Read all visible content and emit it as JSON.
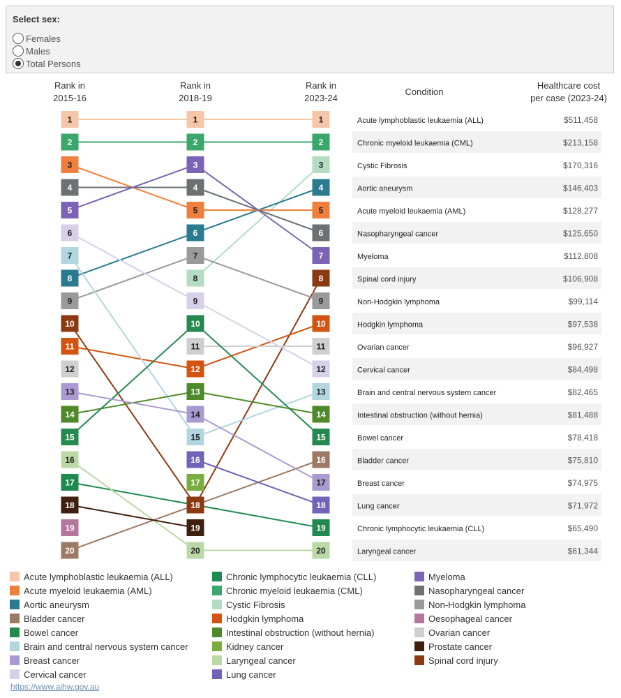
{
  "filter": {
    "title": "Select sex:",
    "options": [
      {
        "label": "Females",
        "selected": false
      },
      {
        "label": "Males",
        "selected": false
      },
      {
        "label": "Total Persons",
        "selected": true
      }
    ]
  },
  "chart_data": {
    "type": "bump",
    "column_headers": {
      "rank_2015": [
        "Rank in",
        "2015-16"
      ],
      "rank_2018": [
        "Rank in",
        "2018-19"
      ],
      "rank_2023": [
        "Rank in",
        "2023-24"
      ],
      "condition": "Condition",
      "cost": [
        "Healthcare cost",
        "per case (2023-24)"
      ]
    },
    "conditions": [
      {
        "name": "Acute lymphoblastic leukaemia (ALL)",
        "color": "#f5c6a8",
        "r2015": 1,
        "r2018": 1,
        "r2023": 1,
        "cost": "$511,458"
      },
      {
        "name": "Chronic myeloid leukaemia (CML)",
        "color": "#3aa86b",
        "r2015": 2,
        "r2018": 2,
        "r2023": 2,
        "cost": "$213,158"
      },
      {
        "name": "Cystic Fibrosis",
        "color": "#b3dcc3",
        "r2015": null,
        "r2018": 8,
        "r2023": 3,
        "cost": "$170,316"
      },
      {
        "name": "Aortic aneurysm",
        "color": "#2a7b8f",
        "r2015": 8,
        "r2018": 6,
        "r2023": 4,
        "cost": "$146,403"
      },
      {
        "name": "Acute myeloid leukaemia (AML)",
        "color": "#f07f3c",
        "r2015": 3,
        "r2018": 5,
        "r2023": 5,
        "cost": "$128,277"
      },
      {
        "name": "Nasopharyngeal cancer",
        "color": "#6d7173",
        "r2015": 4,
        "r2018": 4,
        "r2023": 6,
        "cost": "$125,650"
      },
      {
        "name": "Myeloma",
        "color": "#7b64b5",
        "r2015": 5,
        "r2018": 3,
        "r2023": 7,
        "cost": "$112,808"
      },
      {
        "name": "Spinal cord injury",
        "color": "#8b3a12",
        "r2015": 10,
        "r2018": 18,
        "r2023": 8,
        "cost": "$106,908"
      },
      {
        "name": "Non-Hodgkin lymphoma",
        "color": "#9a9a9a",
        "r2015": 9,
        "r2018": 7,
        "r2023": 9,
        "cost": "$99,114"
      },
      {
        "name": "Hodgkin lymphoma",
        "color": "#d35411",
        "r2015": 11,
        "r2018": 12,
        "r2023": 10,
        "cost": "$97,538"
      },
      {
        "name": "Ovarian cancer",
        "color": "#cfcfcf",
        "r2015": null,
        "r2018": 11,
        "r2023": 11,
        "cost": "$96,927"
      },
      {
        "name": "Cervical cancer",
        "color": "#d6d1e8",
        "r2015": 6,
        "r2018": 9,
        "r2023": 12,
        "cost": "$84,498"
      },
      {
        "name": "Brain and central nervous system cancer",
        "color": "#b2d6e0",
        "r2015": 7,
        "r2018": 15,
        "r2023": 13,
        "cost": "$82,465"
      },
      {
        "name": "Intestinal obstruction (without hernia)",
        "color": "#4e8a2a",
        "r2015": 14,
        "r2018": 13,
        "r2023": 14,
        "cost": "$81,488"
      },
      {
        "name": "Bowel cancer",
        "color": "#24894f",
        "r2015": 15,
        "r2018": 10,
        "r2023": 15,
        "cost": "$78,418"
      },
      {
        "name": "Bladder cancer",
        "color": "#9c7a64",
        "r2015": 20,
        "r2018": null,
        "r2023": 16,
        "cost": "$75,810"
      },
      {
        "name": "Breast cancer",
        "color": "#a99bd1",
        "r2015": 13,
        "r2018": 14,
        "r2023": 17,
        "cost": "$74,975"
      },
      {
        "name": "Lung cancer",
        "color": "#7063b8",
        "r2015": null,
        "r2018": 16,
        "r2023": 18,
        "cost": "$71,972"
      },
      {
        "name": "Chronic lymphocytic leukaemia (CLL)",
        "color": "#1f8a4f",
        "r2015": 17,
        "r2018": null,
        "r2023": 19,
        "cost": "$65,490"
      },
      {
        "name": "Laryngeal cancer",
        "color": "#bad9a6",
        "r2015": 16,
        "r2018": 20,
        "r2023": 20,
        "cost": "$61,344"
      },
      {
        "name": "Prostate cancer",
        "color": "#3f1f0d",
        "r2015": 18,
        "r2018": 19,
        "r2023": null,
        "cost": ""
      },
      {
        "name": "Oesophageal cancer",
        "color": "#b5769e",
        "r2015": 19,
        "r2018": null,
        "r2023": null,
        "cost": ""
      },
      {
        "name": "Kidney cancer",
        "color": "#79ad40",
        "r2015": null,
        "r2018": 17,
        "r2023": null,
        "cost": ""
      },
      {
        "name": "Ovarian cancer 2015",
        "color": "#cfcfcf",
        "r2015": 12,
        "r2018": null,
        "r2023": null,
        "cost": ""
      }
    ]
  },
  "legend": [
    {
      "label": "Acute lymphoblastic leukaemia (ALL)",
      "color": "#f5c6a8"
    },
    {
      "label": "Acute myeloid leukaemia (AML)",
      "color": "#f07f3c"
    },
    {
      "label": "Aortic aneurysm",
      "color": "#2a7b8f"
    },
    {
      "label": "Bladder cancer",
      "color": "#9c7a64"
    },
    {
      "label": "Bowel cancer",
      "color": "#24894f"
    },
    {
      "label": "Brain and central nervous system cancer",
      "color": "#b2d6e0"
    },
    {
      "label": "Breast cancer",
      "color": "#a99bd1"
    },
    {
      "label": "Cervical cancer",
      "color": "#d6d1e8"
    },
    {
      "label": "Chronic lymphocytic leukaemia (CLL)",
      "color": "#1f8a4f"
    },
    {
      "label": "Chronic myeloid leukaemia (CML)",
      "color": "#3aa86b"
    },
    {
      "label": "Cystic Fibrosis",
      "color": "#b3dcc3"
    },
    {
      "label": "Hodgkin lymphoma",
      "color": "#d35411"
    },
    {
      "label": "Intestinal obstruction (without hernia)",
      "color": "#4e8a2a"
    },
    {
      "label": "Kidney cancer",
      "color": "#79ad40"
    },
    {
      "label": "Laryngeal cancer",
      "color": "#bad9a6"
    },
    {
      "label": "Lung cancer",
      "color": "#7063b8"
    },
    {
      "label": "Myeloma",
      "color": "#7b64b5"
    },
    {
      "label": "Nasopharyngeal cancer",
      "color": "#6d7173"
    },
    {
      "label": "Non-Hodgkin lymphoma",
      "color": "#9a9a9a"
    },
    {
      "label": "Oesophageal cancer",
      "color": "#b5769e"
    },
    {
      "label": "Ovarian cancer",
      "color": "#cfcfcf"
    },
    {
      "label": "Prostate cancer",
      "color": "#3f1f0d"
    },
    {
      "label": "Spinal cord injury",
      "color": "#8b3a12"
    }
  ],
  "source": "https://www.aihw.gov.au"
}
